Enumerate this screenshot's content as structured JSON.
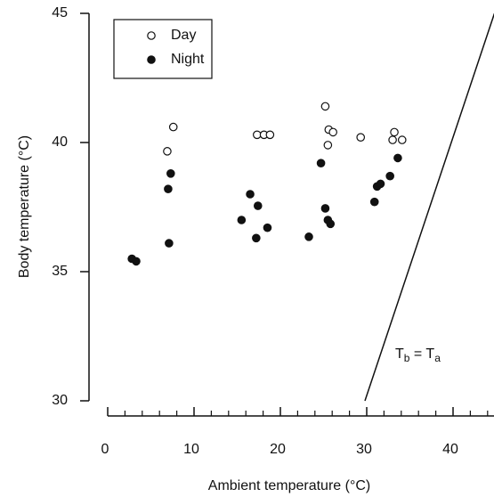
{
  "chart_data": {
    "type": "scatter",
    "xlabel": "Ambient temperature (°C)",
    "ylabel": "Body temperature (°C)",
    "xlim": [
      0,
      45
    ],
    "ylim": [
      30,
      45
    ],
    "xticks": [
      0,
      10,
      20,
      30,
      40
    ],
    "xminorticks": [
      2,
      4,
      6,
      8,
      12,
      14,
      16,
      18,
      22,
      24,
      26,
      28,
      32,
      34,
      36,
      38,
      42,
      44
    ],
    "yticks": [
      30,
      35,
      40,
      45
    ],
    "legend": "upper left",
    "series": [
      {
        "name": "Day",
        "color": "#111111",
        "marker": "open",
        "x": [
          6.9,
          7.6,
          17.3,
          18.1,
          18.8,
          25.2,
          25.6,
          26.1,
          25.5,
          29.3,
          33.2,
          33.0,
          34.1
        ],
        "values": [
          39.66,
          40.6,
          40.3,
          40.3,
          40.3,
          41.4,
          40.5,
          40.4,
          39.9,
          40.2,
          40.4,
          40.1,
          40.1
        ]
      },
      {
        "name": "Night",
        "color": "#111111",
        "marker": "filled",
        "x": [
          2.8,
          3.3,
          7.3,
          7.0,
          7.1,
          15.5,
          16.5,
          17.4,
          17.2,
          18.5,
          23.3,
          24.7,
          25.2,
          25.5,
          25.8,
          30.9,
          31.2,
          31.6,
          32.7,
          33.6
        ],
        "values": [
          35.5,
          35.4,
          38.8,
          38.2,
          36.1,
          37.0,
          38.0,
          37.55,
          36.3,
          36.7,
          36.35,
          39.2,
          37.45,
          37.0,
          36.85,
          37.7,
          38.3,
          38.4,
          38.7,
          39.4
        ]
      }
    ],
    "reference_line": {
      "x": [
        30,
        45
      ],
      "y": [
        30,
        45
      ]
    },
    "annotation": [
      "T",
      "b",
      " = T",
      "a"
    ]
  }
}
